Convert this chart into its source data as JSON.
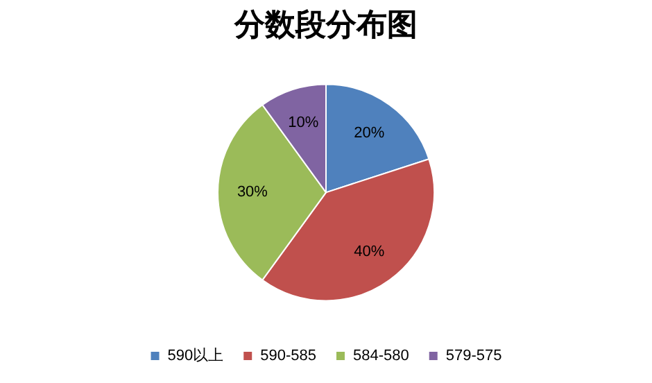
{
  "chart_data": {
    "type": "pie",
    "title": "分数段分布图",
    "categories": [
      "590以上",
      "590-585",
      "584-580",
      "579-575"
    ],
    "values": [
      20,
      40,
      30,
      10
    ],
    "colors": [
      "#4f81bd",
      "#c0504d",
      "#9bbb59",
      "#8064a2"
    ],
    "value_labels": [
      "20%",
      "40%",
      "30%",
      "10%"
    ],
    "legend": "bottom"
  }
}
